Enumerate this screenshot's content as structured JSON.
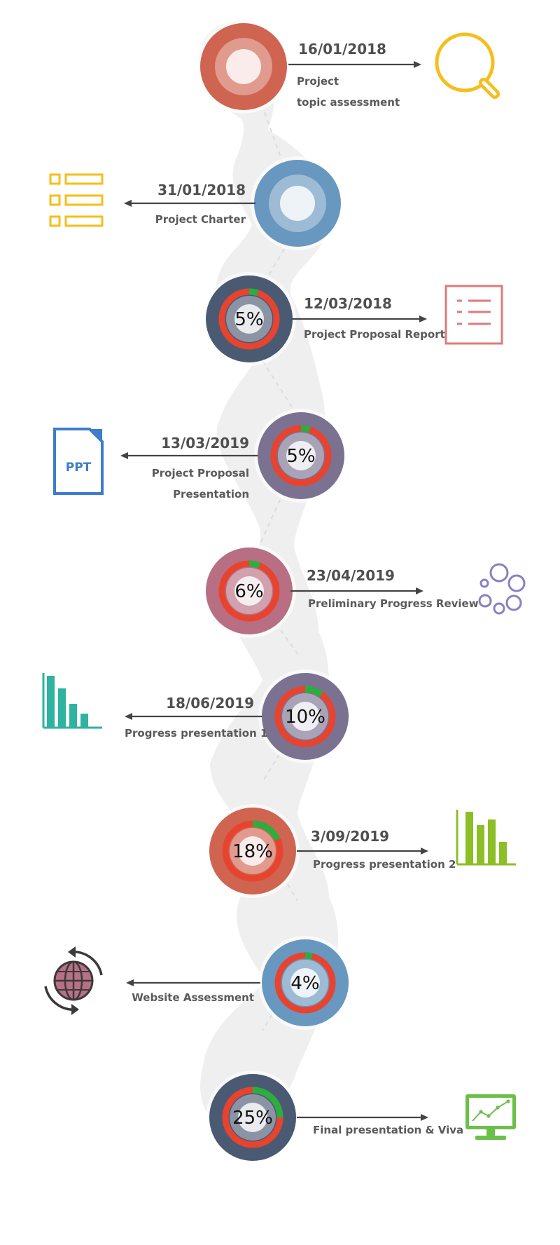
{
  "milestones": [
    {
      "date": "16/01/2018",
      "line1": "Project",
      "line2": "topic assessment",
      "percent": "",
      "progress": null,
      "color": "#cf6451",
      "icon": "magnifier-icon"
    },
    {
      "date": "31/01/2018",
      "line1": "Project Charter",
      "line2": "",
      "percent": "",
      "progress": null,
      "color": "#6897bf",
      "icon": "checklist-icon"
    },
    {
      "date": "12/03/2018",
      "line1": "Project Proposal Report",
      "line2": "",
      "percent": "5%",
      "progress": 0.05,
      "color": "#4b5a73",
      "icon": "report-list-icon"
    },
    {
      "date": "13/03/2019",
      "line1": "Project Proposal",
      "line2": "Presentation",
      "percent": "5%",
      "progress": 0.05,
      "color": "#7b7191",
      "icon": "ppt-file-icon"
    },
    {
      "date": "23/04/2019",
      "line1": "Preliminary Progress Review",
      "line2": "",
      "percent": "6%",
      "progress": 0.06,
      "color": "#b86e83",
      "icon": "bubbles-icon"
    },
    {
      "date": "18/06/2019",
      "line1": "Progress presentation 1",
      "line2": "",
      "percent": "10%",
      "progress": 0.1,
      "color": "#7b7191",
      "icon": "bar-chart-icon"
    },
    {
      "date": "3/09/2019",
      "line1": "Progress presentation 2",
      "line2": "",
      "percent": "18%",
      "progress": 0.18,
      "color": "#cf6451",
      "icon": "bar-chart-icon"
    },
    {
      "date": "",
      "line1": "Website Assessment",
      "line2": "",
      "percent": "4%",
      "progress": 0.04,
      "color": "#6897bf",
      "icon": "globe-sync-icon"
    },
    {
      "date": "",
      "line1": "Final presentation &  Viva",
      "line2": "",
      "percent": "25%",
      "progress": 0.25,
      "color": "#4b5a73",
      "icon": "monitor-chart-icon"
    }
  ],
  "icons": {
    "ppt_label": "PPT"
  },
  "colors": {
    "arrow": "#444444",
    "track": "#efefef",
    "ring": "#e8432e",
    "ring_done": "#2cae3f",
    "yellow": "#f5be1a",
    "salmon": "#e07a78",
    "blue": "#3e7ccc",
    "purple": "#8a80c2",
    "teal": "#2db3a0",
    "lime": "#8cbf26",
    "green": "#6cc04a"
  }
}
